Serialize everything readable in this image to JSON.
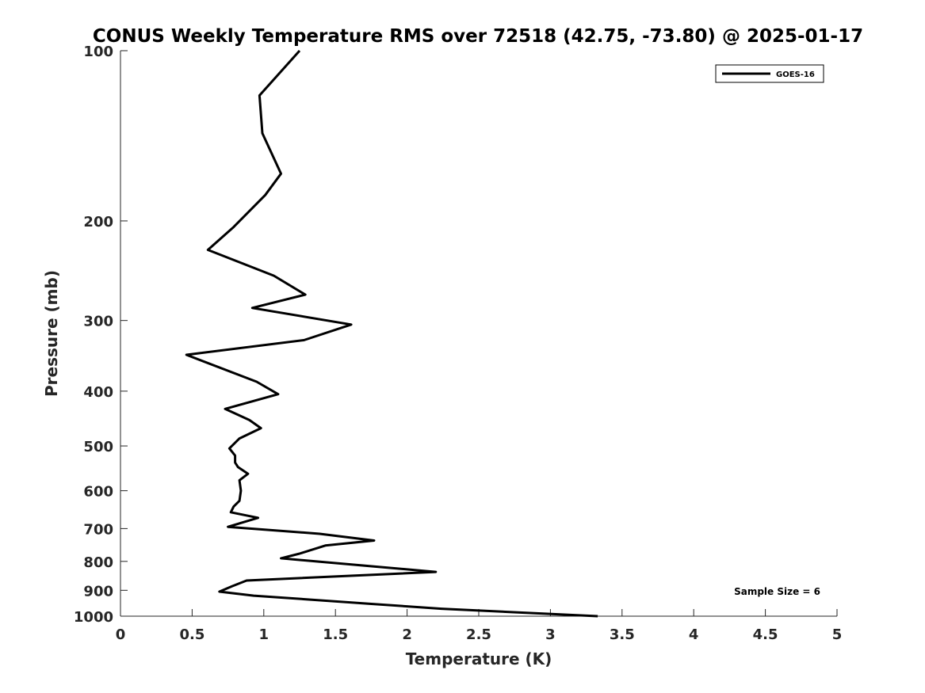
{
  "chart_data": {
    "type": "line",
    "title": "CONUS Weekly Temperature RMS over 72518 (42.75, -73.80) @ 2025-01-17",
    "xlabel": "Temperature (K)",
    "ylabel": "Pressure (mb)",
    "xlim": [
      0,
      5
    ],
    "ylim": [
      1000,
      100
    ],
    "y_scale": "log",
    "y_reversed": true,
    "xticks": [
      0,
      0.5,
      1,
      1.5,
      2,
      2.5,
      3,
      3.5,
      4,
      4.5,
      5
    ],
    "xtick_labels": [
      "0",
      "0.5",
      "1",
      "1.5",
      "2",
      "2.5",
      "3",
      "3.5",
      "4",
      "4.5",
      "5"
    ],
    "yticks": [
      100,
      200,
      300,
      400,
      500,
      600,
      700,
      800,
      900,
      1000
    ],
    "ytick_labels": [
      "100",
      "200",
      "300",
      "400",
      "500",
      "600",
      "700",
      "800",
      "900",
      "1000"
    ],
    "grid": false,
    "legend": {
      "position": "top-right",
      "entries": [
        "GOES-16"
      ]
    },
    "annotation": "Sample Size = 6",
    "series": [
      {
        "name": "GOES-16",
        "color": "#000000",
        "points": [
          [
            1.25,
            100
          ],
          [
            0.97,
            120
          ],
          [
            0.99,
            140
          ],
          [
            1.12,
            165
          ],
          [
            1.01,
            180
          ],
          [
            0.79,
            205
          ],
          [
            0.61,
            225
          ],
          [
            1.07,
            250
          ],
          [
            1.29,
            270
          ],
          [
            0.92,
            285
          ],
          [
            1.61,
            305
          ],
          [
            1.28,
            325
          ],
          [
            0.46,
            345
          ],
          [
            0.95,
            385
          ],
          [
            1.1,
            405
          ],
          [
            0.73,
            430
          ],
          [
            0.9,
            450
          ],
          [
            0.98,
            465
          ],
          [
            0.83,
            485
          ],
          [
            0.76,
            505
          ],
          [
            0.8,
            520
          ],
          [
            0.8,
            535
          ],
          [
            0.82,
            545
          ],
          [
            0.89,
            560
          ],
          [
            0.83,
            575
          ],
          [
            0.84,
            600
          ],
          [
            0.83,
            625
          ],
          [
            0.79,
            640
          ],
          [
            0.77,
            655
          ],
          [
            0.96,
            670
          ],
          [
            0.75,
            695
          ],
          [
            1.39,
            715
          ],
          [
            1.77,
            735
          ],
          [
            1.43,
            750
          ],
          [
            1.25,
            775
          ],
          [
            1.12,
            790
          ],
          [
            1.73,
            815
          ],
          [
            2.2,
            835
          ],
          [
            0.88,
            865
          ],
          [
            0.78,
            885
          ],
          [
            0.69,
            905
          ],
          [
            0.93,
            920
          ],
          [
            1.72,
            950
          ],
          [
            2.24,
            970
          ],
          [
            3.33,
            1000
          ]
        ]
      }
    ]
  }
}
